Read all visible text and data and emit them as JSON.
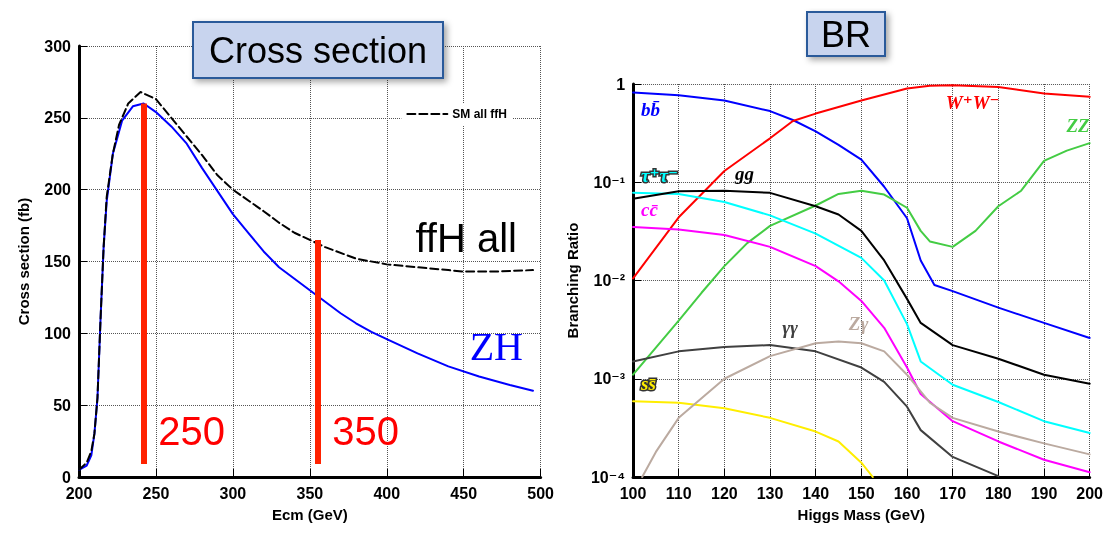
{
  "chart_data": [
    {
      "type": "line",
      "title": "Cross section",
      "xlabel": "Ecm (GeV)",
      "ylabel": "Cross section (fb)",
      "xlim": [
        200,
        500
      ],
      "xticks": [
        200,
        250,
        300,
        350,
        400,
        450,
        500
      ],
      "ylim": [
        0,
        300
      ],
      "yticks": [
        0,
        50,
        100,
        150,
        200,
        250,
        300
      ],
      "grid": true,
      "legend": "top right",
      "marker": "none",
      "annotations": [
        "ffH all",
        {
          "text": "250",
          "x": 242,
          "y": 260
        },
        {
          "text": "350",
          "x": 355,
          "y": 165
        }
      ],
      "series": [
        {
          "name": "ZH",
          "color": "#0000ff",
          "line_style": "solid",
          "x": [
            200,
            205,
            208,
            210,
            212,
            214,
            216,
            218,
            222,
            228,
            235,
            242,
            250,
            260,
            270,
            280,
            290,
            300,
            310,
            320,
            330,
            340,
            350,
            360,
            370,
            380,
            390,
            400,
            420,
            440,
            460,
            480,
            495
          ],
          "values": [
            5,
            8,
            15,
            30,
            55,
            110,
            160,
            192,
            225,
            248,
            258,
            260,
            254,
            244,
            232,
            215,
            199,
            183,
            170,
            157,
            146,
            138,
            130,
            122,
            114,
            107,
            101,
            96,
            86,
            77,
            70,
            64,
            60
          ]
        },
        {
          "name": "SM all ffH",
          "color": "#000000",
          "line_style": "dashed",
          "x": [
            200,
            205,
            208,
            210,
            212,
            214,
            216,
            218,
            222,
            226,
            232,
            240,
            250,
            260,
            270,
            280,
            290,
            300,
            320,
            330,
            340,
            350,
            360,
            380,
            400,
            420,
            440,
            450,
            470,
            495
          ],
          "values": [
            5,
            10,
            18,
            30,
            55,
            110,
            160,
            195,
            225,
            245,
            260,
            268,
            263,
            250,
            237,
            224,
            210,
            200,
            185,
            177,
            170,
            165,
            160,
            152,
            148,
            146,
            144,
            143,
            143,
            144
          ]
        }
      ]
    },
    {
      "type": "line",
      "title": "BR",
      "xlabel": "Higgs Mass (GeV)",
      "ylabel": "Branching Ratio",
      "log": "y",
      "xlim": [
        100,
        200
      ],
      "xticks": [
        100,
        110,
        120,
        130,
        140,
        150,
        160,
        170,
        180,
        190,
        200
      ],
      "ylim": [
        0.0001,
        1
      ],
      "yticks": [
        {
          "value": 0.0001,
          "label": "10⁻⁴"
        },
        {
          "value": 0.001,
          "label": "10⁻³"
        },
        {
          "value": 0.01,
          "label": "10⁻²"
        },
        {
          "value": 0.1,
          "label": "10⁻¹"
        },
        1
      ],
      "grid": true,
      "marker": "none",
      "series": [
        {
          "name": "bb̄",
          "color": "#0000ff",
          "x": [
            100,
            110,
            120,
            130,
            135,
            140,
            145,
            150,
            155,
            160,
            163,
            166,
            170,
            180,
            190,
            200
          ],
          "values": [
            0.82,
            0.77,
            0.68,
            0.53,
            0.43,
            0.33,
            0.24,
            0.17,
            0.09,
            0.043,
            0.016,
            0.009,
            0.0078,
            0.0053,
            0.0037,
            0.0026
          ]
        },
        {
          "name": "W⁺W⁻",
          "color": "#ff0000",
          "x": [
            100,
            110,
            120,
            130,
            135,
            140,
            150,
            160,
            165,
            170,
            180,
            190,
            200
          ],
          "values": [
            0.0105,
            0.044,
            0.13,
            0.28,
            0.42,
            0.5,
            0.68,
            0.9,
            0.96,
            0.97,
            0.93,
            0.8,
            0.74
          ]
        },
        {
          "name": "ZZ",
          "color": "#44cc44",
          "x": [
            100,
            110,
            115,
            120,
            125,
            130,
            140,
            145,
            150,
            155,
            160,
            163,
            165,
            170,
            175,
            180,
            185,
            190,
            195,
            200
          ],
          "values": [
            0.0011,
            0.0039,
            0.0075,
            0.014,
            0.024,
            0.036,
            0.058,
            0.076,
            0.082,
            0.075,
            0.055,
            0.032,
            0.025,
            0.022,
            0.032,
            0.057,
            0.082,
            0.165,
            0.21,
            0.25
          ]
        },
        {
          "name": "τ⁺τ⁻",
          "color": "#00ffff",
          "x": [
            100,
            110,
            120,
            130,
            140,
            150,
            155,
            160,
            163,
            170,
            180,
            190,
            200
          ],
          "values": [
            0.078,
            0.076,
            0.063,
            0.046,
            0.03,
            0.017,
            0.01,
            0.0036,
            0.0015,
            0.00087,
            0.00058,
            0.00037,
            0.00028
          ]
        },
        {
          "name": "gg",
          "color": "#000000",
          "x": [
            100,
            110,
            120,
            130,
            140,
            145,
            150,
            155,
            160,
            163,
            170,
            180,
            190,
            200
          ],
          "values": [
            0.068,
            0.081,
            0.082,
            0.078,
            0.057,
            0.047,
            0.032,
            0.016,
            0.0065,
            0.0037,
            0.0022,
            0.0016,
            0.0011,
            0.00089
          ]
        },
        {
          "name": "cc̄",
          "color": "#ff00ff",
          "x": [
            100,
            110,
            120,
            130,
            140,
            145,
            150,
            155,
            160,
            163,
            170,
            180,
            190,
            200
          ],
          "values": [
            0.035,
            0.033,
            0.029,
            0.022,
            0.014,
            0.0098,
            0.0062,
            0.0033,
            0.0013,
            0.0007,
            0.00037,
            0.00023,
            0.00015,
            0.000112
          ]
        },
        {
          "name": "γγ",
          "color": "#404040",
          "x": [
            100,
            110,
            120,
            130,
            140,
            150,
            155,
            160,
            163,
            170,
            180
          ],
          "values": [
            0.0015,
            0.0019,
            0.0021,
            0.0022,
            0.0019,
            0.0013,
            0.00093,
            0.00052,
            0.0003,
            0.00016,
            0.000102
          ]
        },
        {
          "name": "ss̄",
          "color": "#ffee00",
          "x": [
            100,
            110,
            120,
            130,
            140,
            145,
            150,
            152.5
          ],
          "values": [
            0.00059,
            0.00057,
            0.0005,
            0.0004,
            0.00029,
            0.00023,
            0.00014,
            0.0001
          ]
        },
        {
          "name": "Zγ",
          "color": "#bbaaa0",
          "x": [
            102,
            105,
            110,
            120,
            130,
            140,
            145,
            150,
            155,
            160,
            165,
            170,
            180,
            190,
            200
          ],
          "values": [
            0.0001,
            0.00018,
            0.0004,
            0.001,
            0.0017,
            0.0023,
            0.0024,
            0.0023,
            0.0019,
            0.0011,
            0.00057,
            0.0004,
            0.00029,
            0.00022,
            0.00017
          ]
        }
      ]
    }
  ]
}
